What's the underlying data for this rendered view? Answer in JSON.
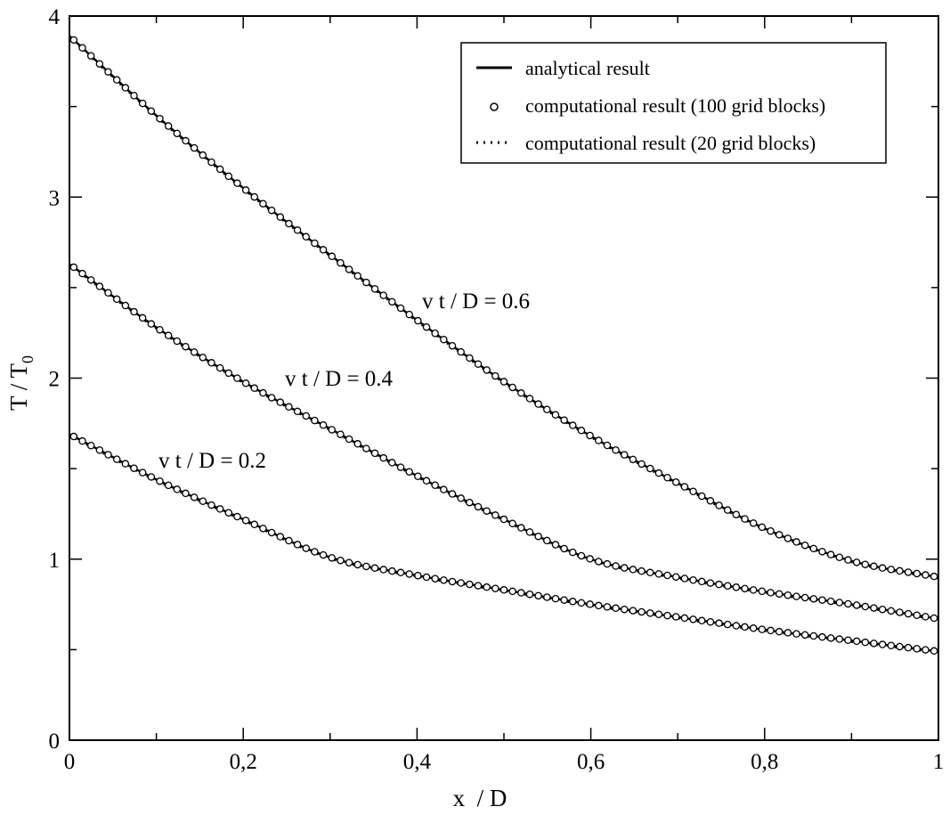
{
  "chart_data": {
    "type": "line",
    "title": "",
    "xlabel": "x  / D",
    "ylabel": "T / T",
    "ylabel_subscript": "0",
    "xlim": [
      0,
      1
    ],
    "ylim": [
      0,
      4
    ],
    "x_ticks": [
      "0",
      "0,2",
      "0,4",
      "0,6",
      "0,8",
      "1"
    ],
    "y_ticks": [
      "0",
      "1",
      "2",
      "3",
      "4"
    ],
    "grid": false,
    "legend": {
      "placement": "top-right",
      "entries": [
        {
          "label": "analytical result",
          "style": "solid-line"
        },
        {
          "label": "computational result (100 grid blocks)",
          "style": "open-circle"
        },
        {
          "label": "computational result (20 grid blocks)",
          "style": "dotted-line"
        }
      ]
    },
    "annotations": [
      {
        "text": "v t / D = 0.6",
        "x": 0.44,
        "y": 2.42
      },
      {
        "text": "v t / D = 0.4",
        "x": 0.27,
        "y": 1.97
      },
      {
        "text": "v t / D = 0.2",
        "x": 0.11,
        "y": 1.53
      }
    ],
    "x": [
      0,
      0.1,
      0.2,
      0.3,
      0.4,
      0.5,
      0.6,
      0.7,
      0.8,
      0.9,
      1.0
    ],
    "series": [
      {
        "label": "v t / D = 0.6",
        "y": [
          3.89,
          3.45,
          3.05,
          2.68,
          2.32,
          1.98,
          1.68,
          1.42,
          1.17,
          0.99,
          0.9
        ]
      },
      {
        "label": "v t / D = 0.4",
        "y": [
          2.63,
          2.28,
          1.98,
          1.72,
          1.46,
          1.22,
          1.0,
          0.9,
          0.82,
          0.75,
          0.67
        ]
      },
      {
        "label": "v t / D = 0.2",
        "y": [
          1.69,
          1.44,
          1.22,
          1.01,
          0.91,
          0.83,
          0.75,
          0.68,
          0.61,
          0.55,
          0.49
        ]
      }
    ]
  }
}
